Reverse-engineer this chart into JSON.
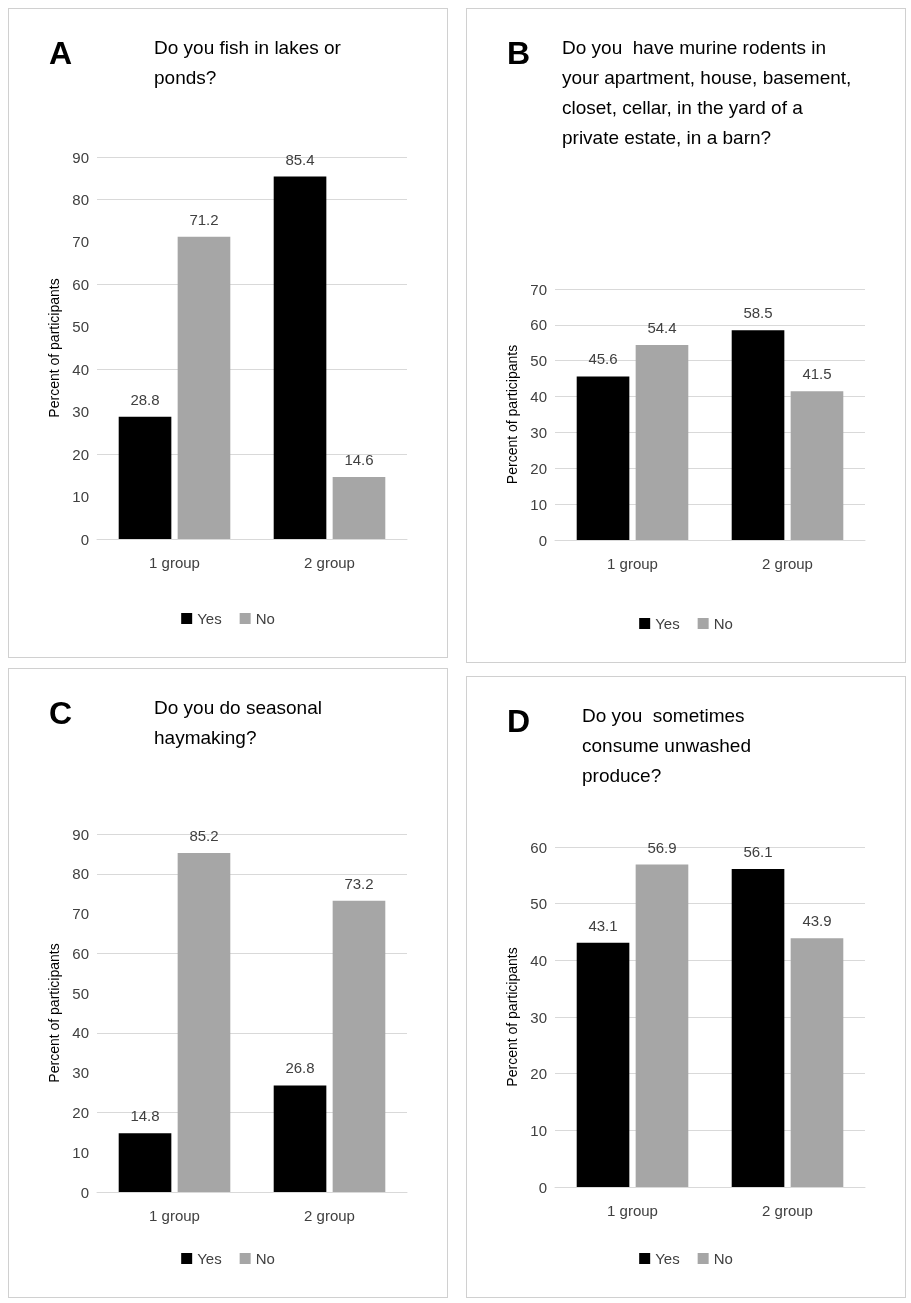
{
  "chart_data": [
    {
      "type": "bar",
      "annotations": [
        "A"
      ],
      "title": "Do you fish in lakes or ponds?",
      "ylabel": "Percent of participants",
      "categories": [
        "1 group",
        "2 group"
      ],
      "series": [
        {
          "name": "Yes",
          "color": "#000000",
          "values": [
            28.8,
            85.4
          ]
        },
        {
          "name": "No",
          "color": "#a6a6a6",
          "values": [
            71.2,
            14.6
          ]
        }
      ],
      "ylim": [
        0,
        90
      ],
      "yticks": [
        0,
        10,
        20,
        30,
        40,
        50,
        60,
        70,
        80,
        90
      ],
      "grid": "y",
      "legend": "bottom",
      "data_labels": true
    },
    {
      "type": "bar",
      "annotations": [
        "B"
      ],
      "title": "Do you  have murine rodents in your apartment, house, basement, closet, cellar, in the yard of a private estate, in a barn?",
      "ylabel": "Percent of participants",
      "categories": [
        "1 group",
        "2 group"
      ],
      "series": [
        {
          "name": "Yes",
          "color": "#000000",
          "values": [
            45.6,
            58.5
          ]
        },
        {
          "name": "No",
          "color": "#a6a6a6",
          "values": [
            54.4,
            41.5
          ]
        }
      ],
      "ylim": [
        0,
        70
      ],
      "yticks": [
        0,
        10,
        20,
        30,
        40,
        50,
        60,
        70
      ],
      "grid": "y",
      "legend": "bottom",
      "data_labels": true
    },
    {
      "type": "bar",
      "annotations": [
        "C"
      ],
      "title": "Do you do seasonal haymaking?",
      "ylabel": "Percent of participants",
      "categories": [
        "1 group",
        "2 group"
      ],
      "series": [
        {
          "name": "Yes",
          "color": "#000000",
          "values": [
            14.8,
            26.8
          ]
        },
        {
          "name": "No",
          "color": "#a6a6a6",
          "values": [
            85.2,
            73.2
          ]
        }
      ],
      "ylim": [
        0,
        90
      ],
      "yticks": [
        0,
        10,
        20,
        30,
        40,
        50,
        60,
        70,
        80,
        90
      ],
      "grid": "y",
      "legend": "bottom",
      "data_labels": true
    },
    {
      "type": "bar",
      "annotations": [
        "D"
      ],
      "title": "Do you  sometimes consume unwashed produce?",
      "ylabel": "Percent of participants",
      "categories": [
        "1 group",
        "2 group"
      ],
      "series": [
        {
          "name": "Yes",
          "color": "#000000",
          "values": [
            43.1,
            56.1
          ]
        },
        {
          "name": "No",
          "color": "#a6a6a6",
          "values": [
            56.9,
            43.9
          ]
        }
      ],
      "ylim": [
        0,
        60
      ],
      "yticks": [
        0,
        10,
        20,
        30,
        40,
        50,
        60
      ],
      "grid": "y",
      "legend": "bottom",
      "data_labels": true
    }
  ]
}
